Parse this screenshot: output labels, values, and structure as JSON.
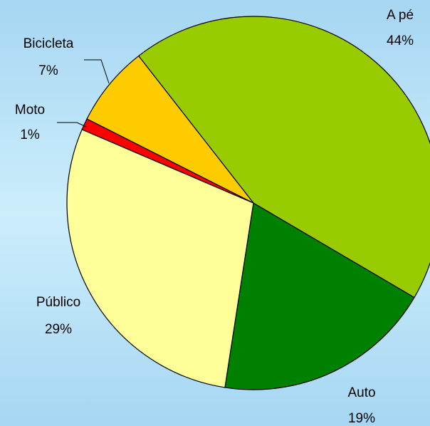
{
  "chart_data": {
    "type": "pie",
    "categories": [
      "A pé",
      "Auto",
      "Público",
      "Moto",
      "Bicicleta"
    ],
    "values": [
      44,
      19,
      29,
      1,
      7
    ],
    "value_labels": [
      "44%",
      "19%",
      "29%",
      "1%",
      "7%"
    ],
    "colors": [
      "#99cc00",
      "#008000",
      "#ffff99",
      "#ff0000",
      "#ffcc00"
    ]
  }
}
